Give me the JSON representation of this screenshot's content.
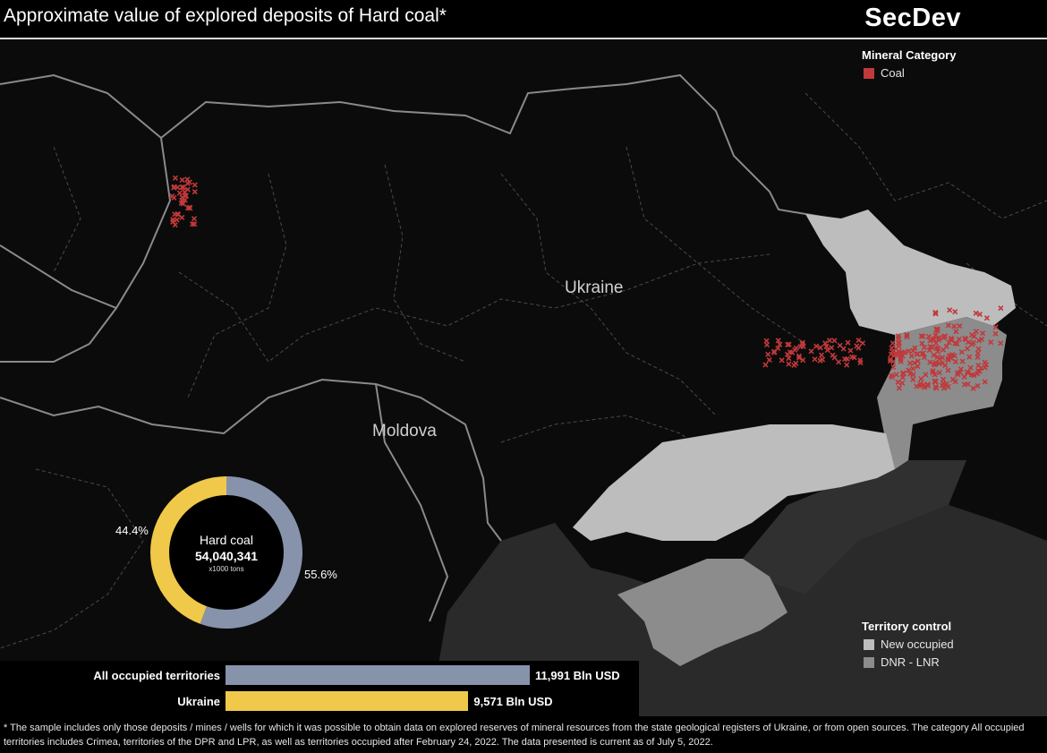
{
  "header": {
    "title": "Approximate value of explored deposits of Hard coal*",
    "brand": "SecDev"
  },
  "legend_mineral": {
    "title": "Mineral Category",
    "items": [
      {
        "label": "Coal",
        "color": "#c0393b"
      }
    ]
  },
  "legend_territory": {
    "title": "Territory control",
    "items": [
      {
        "label": "New occupied",
        "color": "#bdbdbd"
      },
      {
        "label": "DNR - LNR",
        "color": "#8c8c8c"
      }
    ]
  },
  "map_labels": {
    "ukraine": "Ukraine",
    "moldova": "Moldova"
  },
  "donut": {
    "label": "Hard coal",
    "value": "54,040,341",
    "unit": "x1000 tons",
    "segments": [
      {
        "share": 55.6,
        "pct_label": "55.6%",
        "color": "#8693ab"
      },
      {
        "share": 44.4,
        "pct_label": "44.4%",
        "color": "#f0c94a"
      }
    ]
  },
  "chart_data": {
    "type": "bar",
    "orientation": "horizontal",
    "categories": [
      "All occupied territories",
      "Ukraine"
    ],
    "values": [
      11991,
      9571
    ],
    "value_labels": [
      "11,991 Bln USD",
      "9,571 Bln USD"
    ],
    "colors": [
      "#8693ab",
      "#f0c94a"
    ]
  },
  "footnote": "* The sample includes only those deposits / mines / wells for which it was possible to obtain data on explored reserves of mineral resources from the state geological registers of Ukraine, or from open sources. The category All occupied territories includes Crimea, territories of the DPR and LPR, as well as territories occupied after February 24, 2022. The data presented is current as of July 5, 2022."
}
